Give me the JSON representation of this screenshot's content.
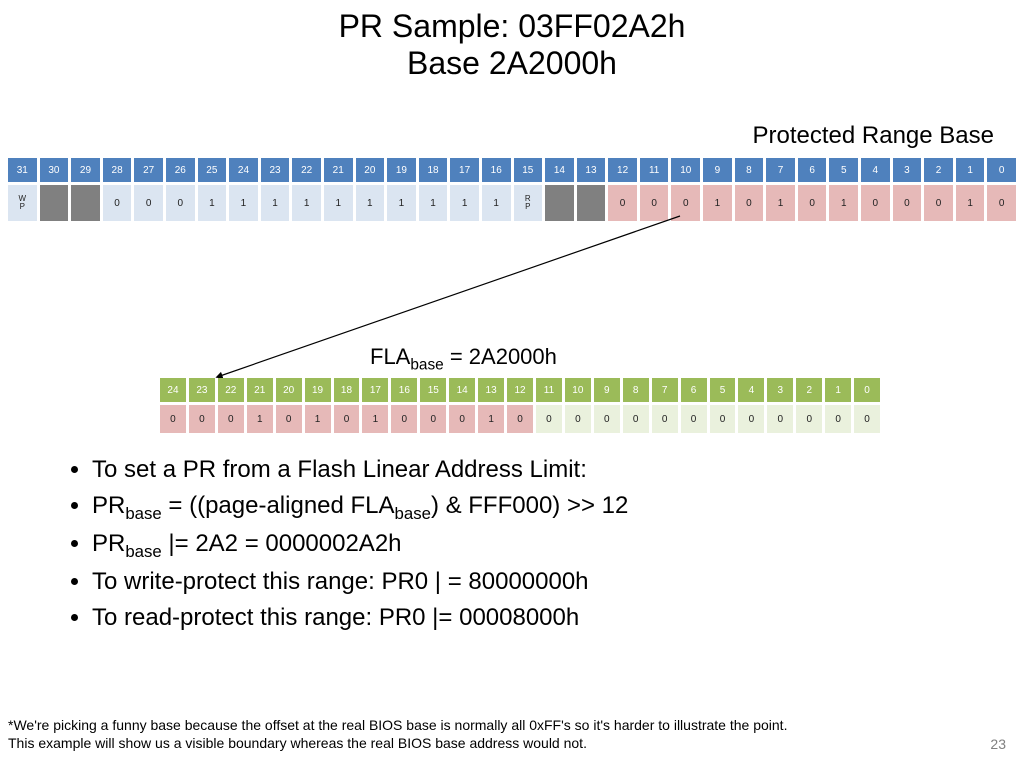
{
  "title": {
    "line1": "PR Sample: 03FF02A2h",
    "line2": "Base 2A2000h"
  },
  "subtitle_right": "Protected Range Base",
  "top_table": {
    "headers": [
      "31",
      "30",
      "29",
      "28",
      "27",
      "26",
      "25",
      "24",
      "23",
      "22",
      "21",
      "20",
      "19",
      "18",
      "17",
      "16",
      "15",
      "14",
      "13",
      "12",
      "11",
      "10",
      "9",
      "8",
      "7",
      "6",
      "5",
      "4",
      "3",
      "2",
      "1",
      "0"
    ],
    "cells": [
      {
        "t": "W\nP",
        "c": "c-ltblue",
        "tiny": true
      },
      {
        "t": "",
        "c": "c-grey"
      },
      {
        "t": "",
        "c": "c-grey"
      },
      {
        "t": "0",
        "c": "c-ltblue"
      },
      {
        "t": "0",
        "c": "c-ltblue"
      },
      {
        "t": "0",
        "c": "c-ltblue"
      },
      {
        "t": "1",
        "c": "c-ltblue"
      },
      {
        "t": "1",
        "c": "c-ltblue"
      },
      {
        "t": "1",
        "c": "c-ltblue"
      },
      {
        "t": "1",
        "c": "c-ltblue"
      },
      {
        "t": "1",
        "c": "c-ltblue"
      },
      {
        "t": "1",
        "c": "c-ltblue"
      },
      {
        "t": "1",
        "c": "c-ltblue"
      },
      {
        "t": "1",
        "c": "c-ltblue"
      },
      {
        "t": "1",
        "c": "c-ltblue"
      },
      {
        "t": "1",
        "c": "c-ltblue"
      },
      {
        "t": "R\nP",
        "c": "c-ltblue",
        "tiny": true
      },
      {
        "t": "",
        "c": "c-grey"
      },
      {
        "t": "",
        "c": "c-grey"
      },
      {
        "t": "0",
        "c": "c-pink"
      },
      {
        "t": "0",
        "c": "c-pink"
      },
      {
        "t": "0",
        "c": "c-pink"
      },
      {
        "t": "1",
        "c": "c-pink"
      },
      {
        "t": "0",
        "c": "c-pink"
      },
      {
        "t": "1",
        "c": "c-pink"
      },
      {
        "t": "0",
        "c": "c-pink"
      },
      {
        "t": "1",
        "c": "c-pink"
      },
      {
        "t": "0",
        "c": "c-pink"
      },
      {
        "t": "0",
        "c": "c-pink"
      },
      {
        "t": "0",
        "c": "c-pink"
      },
      {
        "t": "1",
        "c": "c-pink"
      },
      {
        "t": "0",
        "c": "c-pink"
      }
    ]
  },
  "fla_label_prefix": "FLA",
  "fla_label_sub": "base",
  "fla_label_suffix": " = 2A2000h",
  "fla_table": {
    "headers": [
      "24",
      "23",
      "22",
      "21",
      "20",
      "19",
      "18",
      "17",
      "16",
      "15",
      "14",
      "13",
      "12",
      "11",
      "10",
      "9",
      "8",
      "7",
      "6",
      "5",
      "4",
      "3",
      "2",
      "1",
      "0"
    ],
    "cells": [
      {
        "t": "0",
        "c": "c-pinkv"
      },
      {
        "t": "0",
        "c": "c-pinkv"
      },
      {
        "t": "0",
        "c": "c-pinkv"
      },
      {
        "t": "1",
        "c": "c-pinkv"
      },
      {
        "t": "0",
        "c": "c-pinkv"
      },
      {
        "t": "1",
        "c": "c-pinkv"
      },
      {
        "t": "0",
        "c": "c-pinkv"
      },
      {
        "t": "1",
        "c": "c-pinkv"
      },
      {
        "t": "0",
        "c": "c-pinkv"
      },
      {
        "t": "0",
        "c": "c-pinkv"
      },
      {
        "t": "0",
        "c": "c-pinkv"
      },
      {
        "t": "1",
        "c": "c-pinkv"
      },
      {
        "t": "0",
        "c": "c-pinkv"
      },
      {
        "t": "0",
        "c": "c-ltgrn"
      },
      {
        "t": "0",
        "c": "c-ltgrn"
      },
      {
        "t": "0",
        "c": "c-ltgrn"
      },
      {
        "t": "0",
        "c": "c-ltgrn"
      },
      {
        "t": "0",
        "c": "c-ltgrn"
      },
      {
        "t": "0",
        "c": "c-ltgrn"
      },
      {
        "t": "0",
        "c": "c-ltgrn"
      },
      {
        "t": "0",
        "c": "c-ltgrn"
      },
      {
        "t": "0",
        "c": "c-ltgrn"
      },
      {
        "t": "0",
        "c": "c-ltgrn"
      },
      {
        "t": "0",
        "c": "c-ltgrn"
      },
      {
        "t": "0",
        "c": "c-ltgrn"
      }
    ]
  },
  "bullets": [
    {
      "html": "To set a PR from a Flash Linear Address Limit:"
    },
    {
      "html": "PR<sub>base</sub> = ((page-aligned FLA<sub>base</sub>) & FFF000) >> 12"
    },
    {
      "html": "PR<sub>base</sub> |= 2A2 = 0000002A2h"
    },
    {
      "html": "To write-protect this range: PR0 | = 80000000h"
    },
    {
      "html": "To read-protect this range: PR0 |= 00008000h"
    }
  ],
  "footnote": {
    "l1": "*We're picking a funny base because the offset at the real BIOS base is normally all 0xFF's so it's harder to illustrate the point.",
    "l2": "This example will show us a visible boundary whereas the real BIOS base address would not."
  },
  "page_num": "23"
}
